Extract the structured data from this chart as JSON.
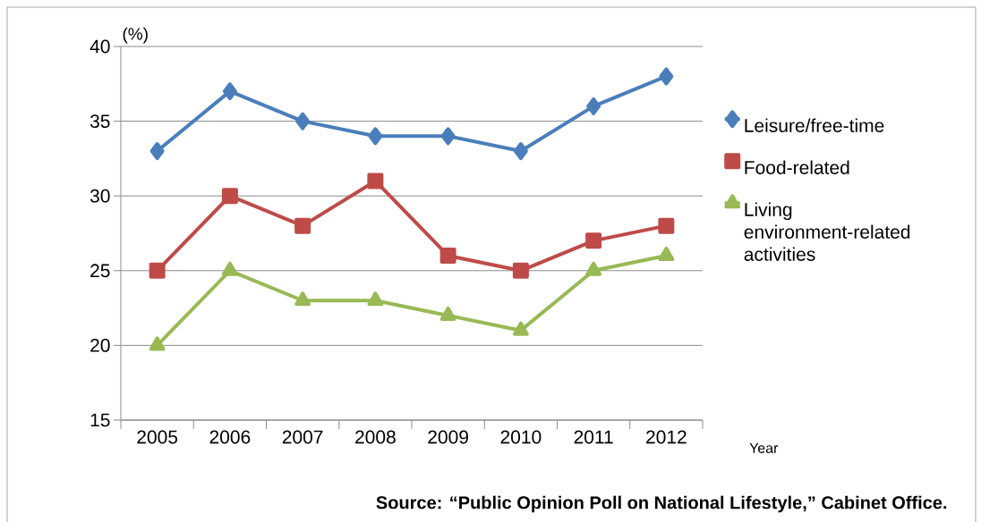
{
  "chart_data": {
    "type": "line",
    "ylabel": "(%)",
    "xlabel": "Year",
    "categories": [
      "2005",
      "2006",
      "2007",
      "2008",
      "2009",
      "2010",
      "2011",
      "2012"
    ],
    "series": [
      {
        "name": "Leisure/free-time",
        "color": "#4a7ebb",
        "marker": "diamond",
        "values": [
          33,
          37,
          35,
          34,
          34,
          33,
          36,
          38
        ]
      },
      {
        "name": "Food-related",
        "color": "#be4b48",
        "marker": "square",
        "values": [
          25,
          30,
          28,
          31,
          26,
          25,
          27,
          28
        ]
      },
      {
        "name": "Living environment-related activities",
        "color": "#98b954",
        "marker": "triangle",
        "values": [
          20,
          25,
          23,
          23,
          22,
          21,
          25,
          26
        ]
      }
    ],
    "ylim": [
      15,
      40
    ],
    "yticks": [
      15,
      20,
      25,
      30,
      35,
      40
    ],
    "grid": "y",
    "legend": "right",
    "line_style": "solid",
    "annotations": [
      "**Source: “Public Opinion Poll on National Lifestyle,” Cabinet Office.**"
    ]
  }
}
